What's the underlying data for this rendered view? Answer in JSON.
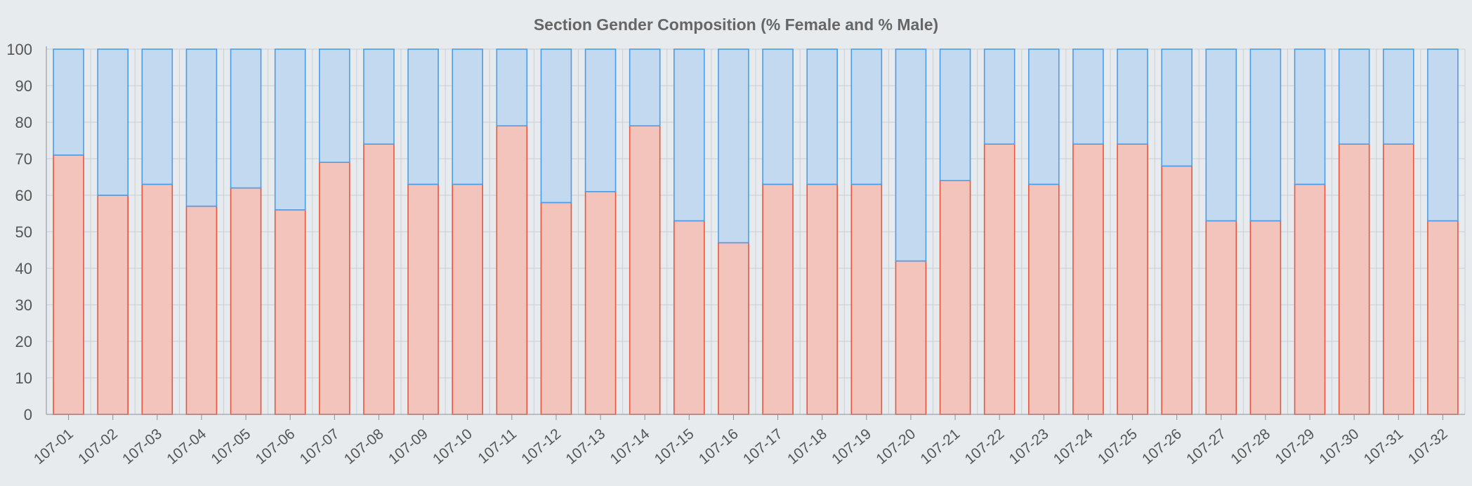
{
  "chart_data": {
    "type": "bar",
    "stacked": true,
    "title": "Section Gender Composition (% Female and % Male)",
    "categories": [
      "107-01",
      "107-02",
      "107-03",
      "107-04",
      "107-05",
      "107-06",
      "107-07",
      "107-08",
      "107-09",
      "107-10",
      "107-11",
      "107-12",
      "107-13",
      "107-14",
      "107-15",
      "107-16",
      "107-17",
      "107-18",
      "107-19",
      "107-20",
      "107-21",
      "107-22",
      "107-23",
      "107-24",
      "107-25",
      "107-26",
      "107-27",
      "107-28",
      "107-29",
      "107-30",
      "107-31",
      "107-32"
    ],
    "series": [
      {
        "color": "#e8553d",
        "fill": "#f2c4bc",
        "values": [
          71,
          60,
          63,
          57,
          62,
          56,
          69,
          74,
          63,
          63,
          79,
          58,
          61,
          79,
          53,
          47,
          63,
          63,
          63,
          42,
          64,
          74,
          63,
          74,
          74,
          68,
          53,
          53,
          63,
          74,
          74,
          53
        ]
      },
      {
        "color": "#4a9de6",
        "fill": "#c3d9ef",
        "values": [
          29,
          40,
          37,
          43,
          38,
          44,
          31,
          26,
          37,
          37,
          21,
          42,
          39,
          21,
          47,
          53,
          37,
          37,
          37,
          58,
          36,
          26,
          37,
          26,
          26,
          32,
          47,
          47,
          37,
          26,
          26,
          47
        ]
      }
    ],
    "ylim": [
      0,
      100
    ],
    "yticks": [
      0,
      10,
      20,
      30,
      40,
      50,
      60,
      70,
      80,
      90,
      100
    ],
    "grid": true,
    "grid_color": "#c9cfd4",
    "axis_color": "#8a8f94"
  }
}
